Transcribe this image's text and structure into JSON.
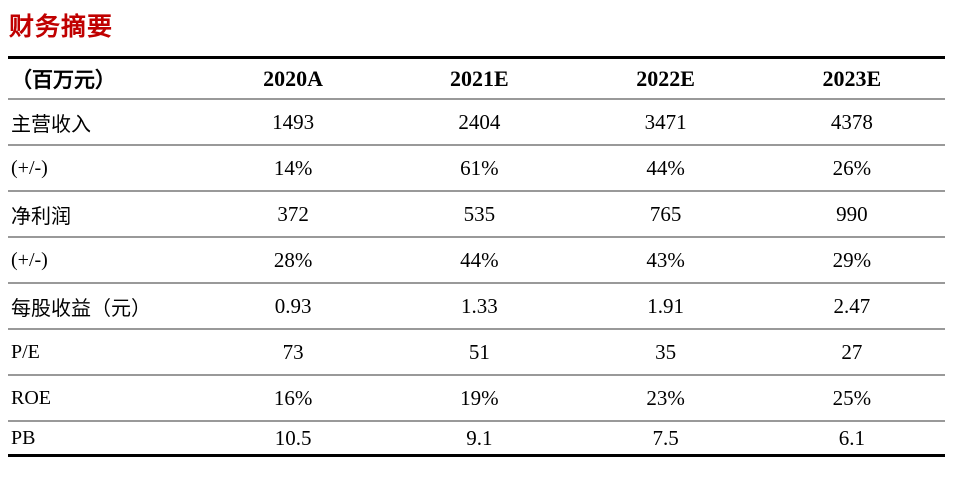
{
  "title": "财务摘要",
  "table": {
    "unit_header": "（百万元）",
    "columns": [
      "2020A",
      "2021E",
      "2022E",
      "2023E"
    ],
    "rows": [
      {
        "label": "主营收入",
        "values": [
          "1493",
          "2404",
          "3471",
          "4378"
        ]
      },
      {
        "label": "(+/-)",
        "values": [
          "14%",
          "61%",
          "44%",
          "26%"
        ]
      },
      {
        "label": "净利润",
        "values": [
          "372",
          "535",
          "765",
          "990"
        ]
      },
      {
        "label": "(+/-)",
        "values": [
          "28%",
          "44%",
          "43%",
          "29%"
        ]
      },
      {
        "label": "每股收益（元）",
        "values": [
          "0.93",
          "1.33",
          "1.91",
          "2.47"
        ]
      },
      {
        "label": "P/E",
        "values": [
          "73",
          "51",
          "35",
          "27"
        ]
      },
      {
        "label": "ROE",
        "values": [
          "16%",
          "19%",
          "23%",
          "25%"
        ]
      },
      {
        "label": "PB",
        "values": [
          "10.5",
          "9.1",
          "7.5",
          "6.1"
        ]
      }
    ]
  },
  "colors": {
    "title_red": "#C00000",
    "border_dark": "#000000",
    "border_light": "#999999",
    "background": "#FFFFFF"
  }
}
